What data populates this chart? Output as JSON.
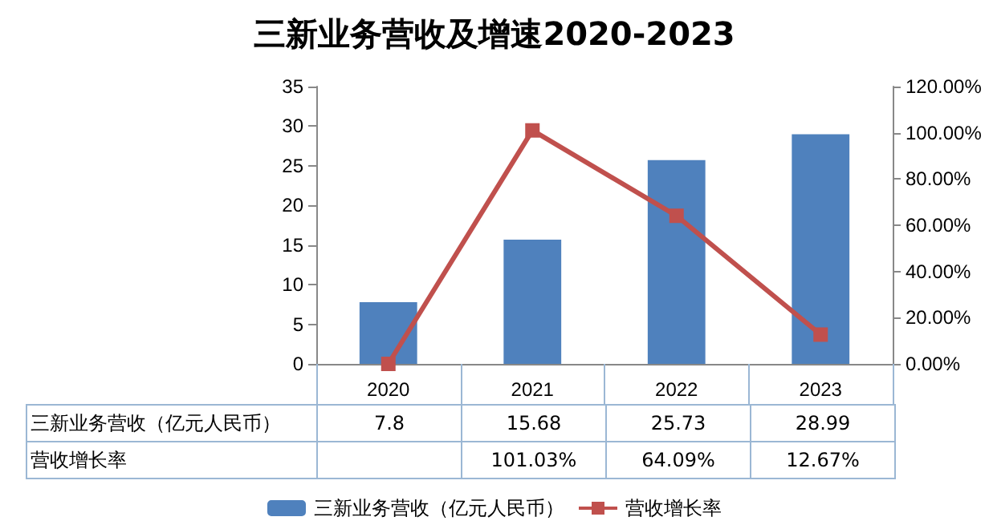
{
  "chart_data": {
    "type": "bar",
    "title": "三新业务营收及增速2020-2023",
    "categories": [
      "2020",
      "2021",
      "2022",
      "2023"
    ],
    "series": [
      {
        "name": "三新业务营收（亿元人民币）",
        "color": "#4f81bd",
        "values": [
          7.8,
          15.68,
          25.73,
          28.99
        ],
        "value_labels": [
          "7.8",
          "15.68",
          "25.73",
          "28.99"
        ]
      },
      {
        "type": "line",
        "name": "营收增长率",
        "color": "#c0504d",
        "axis": "y2",
        "values": [
          0,
          101.03,
          64.09,
          12.67
        ],
        "value_labels": [
          null,
          "101.03%",
          "64.09%",
          "12.67%"
        ]
      }
    ],
    "ylim": [
      0,
      35
    ],
    "yticks": [
      0,
      5,
      10,
      15,
      20,
      25,
      30,
      35
    ],
    "y2lim": [
      0,
      120
    ],
    "y2ticks": [
      {
        "value": 0,
        "label": "0.00%"
      },
      {
        "value": 20,
        "label": "20.00%"
      },
      {
        "value": 40,
        "label": "40.00%"
      },
      {
        "value": 60,
        "label": "60.00%"
      },
      {
        "value": 80,
        "label": "80.00%"
      },
      {
        "value": 100,
        "label": "100.00%"
      },
      {
        "value": 120,
        "label": "120.00%"
      }
    ],
    "legend": "bottom",
    "marker": "square"
  }
}
